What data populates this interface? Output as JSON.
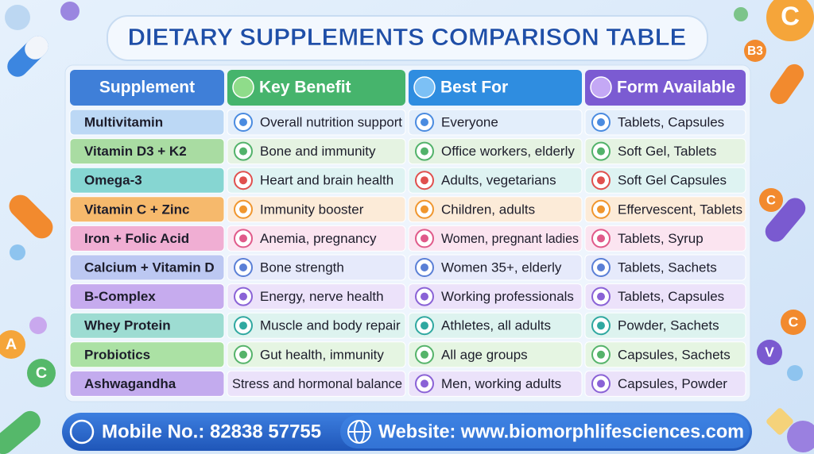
{
  "title": "DIETARY SUPPLEMENTS COMPARISON TABLE",
  "table": {
    "headers": [
      "Supplement",
      "Key Benefit",
      "Best For",
      "Form Available"
    ],
    "rows": [
      [
        "Multivitamin",
        "Overall nutrition support",
        "Everyone",
        "Tablets, Capsules"
      ],
      [
        "Vitamin D3 + K2",
        "Bone and immunity",
        "Office workers, elderly",
        "Soft Gel, Tablets"
      ],
      [
        "Omega-3",
        "Heart and brain health",
        "Adults, vegetarians",
        "Soft Gel Capsules"
      ],
      [
        "Vitamin C + Zinc",
        "Immunity booster",
        "Children, adults",
        "Effervescent, Tablets"
      ],
      [
        "Iron + Folic Acid",
        "Anemia, pregnancy",
        "Women, pregnant ladies",
        "Tablets, Syrup"
      ],
      [
        "Calcium + Vitamin D",
        "Bone strength",
        "Women 35+, elderly",
        "Tablets, Sachets"
      ],
      [
        "B-Complex",
        "Energy, nerve health",
        "Working professionals",
        "Tablets, Capsules"
      ],
      [
        "Whey Protein",
        "Muscle and body repair",
        "Athletes, all adults",
        "Powder, Sachets"
      ],
      [
        "Probiotics",
        "Gut health, immunity",
        "All age groups",
        "Capsules, Sachets"
      ],
      [
        "Ashwagandha",
        "Stress and hormonal balance",
        "Men, working adults",
        "Capsules, Powder"
      ]
    ]
  },
  "footer": {
    "mobile": "Mobile No.: 82838 57755",
    "website": "Website: www.biomorphlifesciences.com"
  },
  "decor_labels": [
    "C",
    "B3",
    "C",
    "C",
    "A",
    "C",
    "V"
  ]
}
